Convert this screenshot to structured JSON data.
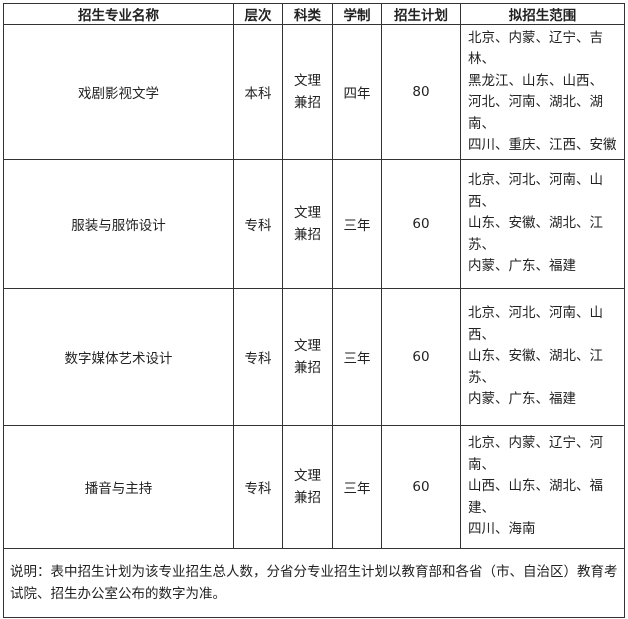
{
  "headers": [
    "招生专业名称",
    "层次",
    "科类",
    "学制",
    "招生计划",
    "拟招生范围"
  ],
  "rows": [
    {
      "name": "戏剧影视文学",
      "level": "本科",
      "category1": "文理",
      "category2": "兼招",
      "duration": "四年",
      "plan": "80",
      "regions": [
        "北京、内蒙、辽宁、吉林、",
        "黑龙江、山东、山西、",
        "河北、河南、湖北、湖南、",
        "四川、重庆、江西、安徽"
      ]
    },
    {
      "name": "服装与服饰设计",
      "level": "专科",
      "category1": "文理",
      "category2": "兼招",
      "duration": "三年",
      "plan": "60",
      "regions": [
        "北京、河北、河南、山西、",
        "山东、安徽、湖北、江苏、",
        "内蒙、广东、福建"
      ]
    },
    {
      "name": "数字媒体艺术设计",
      "level": "专科",
      "category1": "文理",
      "category2": "兼招",
      "duration": "三年",
      "plan": "60",
      "regions": [
        "北京、河北、河南、山西、",
        "山东、安徽、湖北、江苏、",
        "内蒙、广东、福建"
      ]
    },
    {
      "name": "播音与主持",
      "level": "专科",
      "category1": "文理",
      "category2": "兼招",
      "duration": "三年",
      "plan": "60",
      "regions": [
        "北京、内蒙、辽宁、河南、",
        "山西、山东、湖北、福建、",
        "四川、海南"
      ]
    }
  ],
  "note": "说明：表中招生计划为该专业招生总人数，分省分专业招生计划以教育部和各省（市、自治区）教育考试院、招生办公室公布的数字为准。"
}
